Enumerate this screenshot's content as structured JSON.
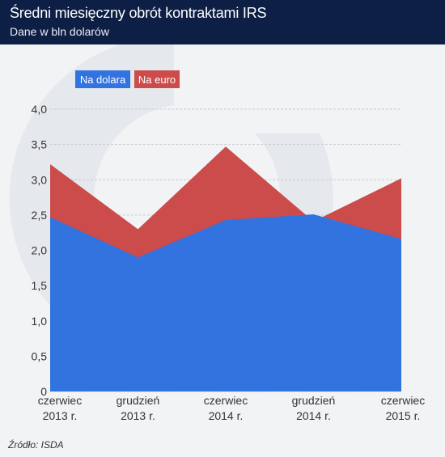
{
  "header": {
    "title": "Średni miesięczny obrót kontraktami IRS",
    "subtitle": "Dane w bln dolarów"
  },
  "source": "Źródło: ISDA",
  "colors": {
    "header_bg": "#0e1f45",
    "dolar": "#3273e0",
    "euro": "#cc4b4b",
    "background": "#f2f3f5"
  },
  "chart_data": {
    "type": "area",
    "stacked": true,
    "categories": [
      [
        "czerwiec",
        "2013 r."
      ],
      [
        "grudzień",
        "2013 r."
      ],
      [
        "czerwiec",
        "2014 r."
      ],
      [
        "grudzień",
        "2014 r."
      ],
      [
        "czerwiec",
        "2015 r."
      ]
    ],
    "series": [
      {
        "name": "Na dolara",
        "values": [
          2.47,
          1.9,
          2.43,
          2.51,
          2.16
        ],
        "color": "#3273e0"
      },
      {
        "name": "Na euro",
        "values": [
          0.75,
          0.4,
          1.04,
          -0.1,
          0.86
        ],
        "color": "#cc4b4b"
      }
    ],
    "totals": [
      3.22,
      2.3,
      3.47,
      2.41,
      3.02
    ],
    "ylim": [
      0,
      4.0
    ],
    "yticks": [
      "4,0",
      "3,5",
      "3,0",
      "2,5",
      "2,0",
      "1,5",
      "1,0",
      "0,5",
      "0"
    ],
    "ytick_values": [
      4.0,
      3.5,
      3.0,
      2.5,
      2.0,
      1.5,
      1.0,
      0.5,
      0
    ],
    "grid": true,
    "legend": "top-left"
  }
}
